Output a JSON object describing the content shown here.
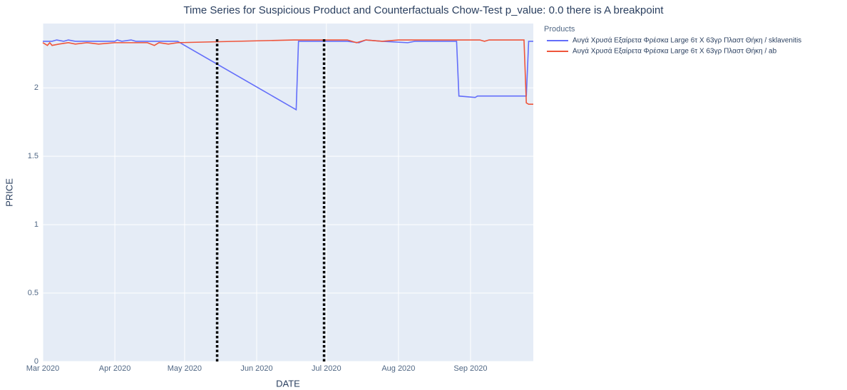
{
  "chart_data": {
    "type": "line",
    "title": "Time Series for Suspicious Product and Counterfactuals Chow-Test p_value: 0.0  there is A breakpoint",
    "x_label": "DATE",
    "y_label": "PRICE",
    "legend_title": "Products",
    "legend": "outside-top-right",
    "grid": true,
    "xlim": [
      "2020-03-01",
      "2020-09-28"
    ],
    "xticks": [
      {
        "value": "2020-03-01",
        "label": "Mar 2020"
      },
      {
        "value": "2020-04-01",
        "label": "Apr 2020"
      },
      {
        "value": "2020-05-01",
        "label": "May 2020"
      },
      {
        "value": "2020-06-01",
        "label": "Jun 2020"
      },
      {
        "value": "2020-07-01",
        "label": "Jul 2020"
      },
      {
        "value": "2020-08-01",
        "label": "Aug 2020"
      },
      {
        "value": "2020-09-01",
        "label": "Sep 2020"
      }
    ],
    "ylim": [
      0,
      2.47
    ],
    "yticks": [
      0,
      0.5,
      1,
      1.5,
      2
    ],
    "vlines": [
      "2020-05-15",
      "2020-06-30"
    ],
    "vline_color": "#000000",
    "series": [
      {
        "name": "Αυγά Χρυσά Εξαίρετα Φρέσκα Large 6τ Χ 63γρ Πλαστ Θήκη / sklavenitis",
        "color": "#636efa",
        "x": [
          "2020-03-01",
          "2020-03-05",
          "2020-03-07",
          "2020-03-10",
          "2020-03-12",
          "2020-03-15",
          "2020-04-01",
          "2020-04-02",
          "2020-04-04",
          "2020-04-08",
          "2020-04-10",
          "2020-04-28",
          "2020-06-18",
          "2020-06-19",
          "2020-07-10",
          "2020-07-15",
          "2020-07-18",
          "2020-07-25",
          "2020-08-05",
          "2020-08-08",
          "2020-08-20",
          "2020-08-26",
          "2020-08-27",
          "2020-09-03",
          "2020-09-04",
          "2020-09-25",
          "2020-09-26",
          "2020-09-28"
        ],
        "values": [
          2.34,
          2.34,
          2.35,
          2.34,
          2.35,
          2.34,
          2.34,
          2.35,
          2.34,
          2.35,
          2.34,
          2.34,
          1.84,
          2.34,
          2.34,
          2.33,
          2.35,
          2.34,
          2.33,
          2.34,
          2.34,
          2.34,
          1.94,
          1.93,
          1.94,
          1.94,
          2.34,
          2.34
        ]
      },
      {
        "name": "Αυγά Χρυσά Εξαίρετα Φρέσκα Large 6τ Χ 63γρ Πλαστ Θήκη / ab",
        "color": "#ef553b",
        "x": [
          "2020-03-01",
          "2020-03-03",
          "2020-03-04",
          "2020-03-05",
          "2020-03-08",
          "2020-03-12",
          "2020-03-15",
          "2020-03-20",
          "2020-03-25",
          "2020-04-01",
          "2020-04-15",
          "2020-04-18",
          "2020-04-20",
          "2020-04-24",
          "2020-04-28",
          "2020-06-17",
          "2020-07-10",
          "2020-07-14",
          "2020-07-18",
          "2020-07-25",
          "2020-08-01",
          "2020-09-05",
          "2020-09-07",
          "2020-09-09",
          "2020-09-24",
          "2020-09-25",
          "2020-09-26",
          "2020-09-28"
        ],
        "values": [
          2.33,
          2.31,
          2.33,
          2.31,
          2.32,
          2.33,
          2.32,
          2.33,
          2.32,
          2.33,
          2.33,
          2.31,
          2.33,
          2.32,
          2.33,
          2.35,
          2.35,
          2.33,
          2.35,
          2.34,
          2.35,
          2.35,
          2.34,
          2.35,
          2.35,
          1.89,
          1.88,
          1.88
        ]
      }
    ]
  }
}
